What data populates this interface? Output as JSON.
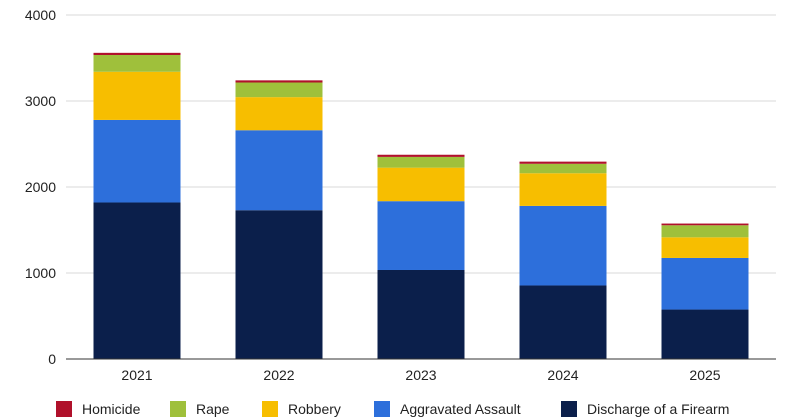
{
  "chart_data": {
    "type": "bar",
    "stacked": true,
    "title": "",
    "xlabel": "",
    "ylabel": "",
    "categories": [
      "2021",
      "2022",
      "2023",
      "2024",
      "2025"
    ],
    "ylim": [
      0,
      4000
    ],
    "yticks": [
      0,
      1000,
      2000,
      3000,
      4000
    ],
    "grid": true,
    "legend_position": "bottom",
    "series": [
      {
        "name": "Discharge of a Firearm",
        "color": "#0b1f4b",
        "values": [
          1820,
          1730,
          1035,
          855,
          575
        ]
      },
      {
        "name": "Aggravated Assault",
        "color": "#2d6fdb",
        "values": [
          960,
          930,
          800,
          925,
          600
        ]
      },
      {
        "name": "Robbery",
        "color": "#f7be00",
        "values": [
          560,
          385,
          390,
          380,
          240
        ]
      },
      {
        "name": "Rape",
        "color": "#9fc03b",
        "values": [
          195,
          170,
          125,
          110,
          140
        ]
      },
      {
        "name": "Homicide",
        "color": "#b0112b",
        "values": [
          25,
          25,
          25,
          25,
          20
        ]
      }
    ],
    "legend_order": [
      "Homicide",
      "Rape",
      "Robbery",
      "Aggravated Assault",
      "Discharge of a Firearm"
    ]
  }
}
